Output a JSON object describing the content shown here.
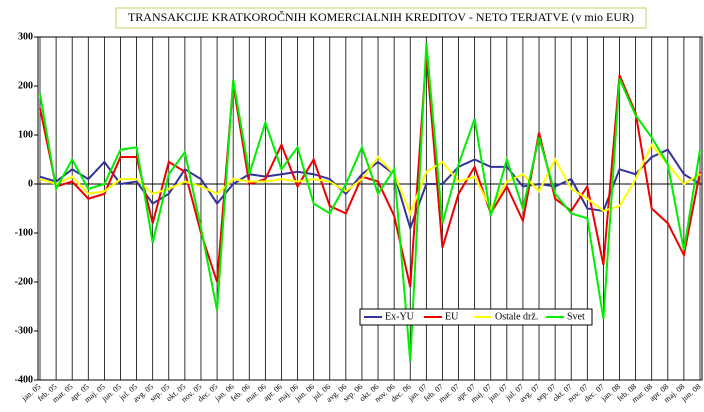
{
  "chart_data": {
    "type": "line",
    "title": "TRANSAKCIJE KRATKOROČNIH KOMERCIALNIH KREDITOV - NETO TERJATVE (v mio EUR)",
    "categories": [
      "jan. 05",
      "feb. 05",
      "mar. 05",
      "apr. 05",
      "maj. 05",
      "jun. 05",
      "jul. 05",
      "avg. 05",
      "sep. 05",
      "okt. 05",
      "nov. 05",
      "dec. 05",
      "jan. 06",
      "feb. 06",
      "mar. 06",
      "apr. 06",
      "maj. 06",
      "jun. 06",
      "jul. 06",
      "avg. 06",
      "sep. 06",
      "okt. 06",
      "nov. 06",
      "dec. 06",
      "jan. 07",
      "feb. 07",
      "mar. 07",
      "apr. 07",
      "maj. 07",
      "jun. 07",
      "jul. 07",
      "avg. 07",
      "sep. 07",
      "okt. 07",
      "nov. 07",
      "dec. 07",
      "jan. 08",
      "feb. 08",
      "mar. 08",
      "apr. 08",
      "maj. 08",
      "jun. 08"
    ],
    "series": [
      {
        "name": "Ex-YU",
        "color": "#333399",
        "values": [
          15,
          5,
          30,
          10,
          45,
          0,
          5,
          -40,
          -20,
          30,
          10,
          -40,
          0,
          20,
          15,
          20,
          25,
          20,
          10,
          -20,
          20,
          45,
          20,
          -90,
          0,
          0,
          35,
          50,
          35,
          35,
          -5,
          0,
          -5,
          10,
          -50,
          -55,
          30,
          20,
          55,
          70,
          20,
          0
        ]
      },
      {
        "name": "EU",
        "color": "#ee0000",
        "values": [
          155,
          -5,
          5,
          -30,
          -20,
          55,
          55,
          -80,
          45,
          25,
          -100,
          -200,
          205,
          0,
          10,
          80,
          -5,
          50,
          -45,
          -60,
          15,
          5,
          -65,
          -210,
          265,
          -130,
          -20,
          35,
          -60,
          -5,
          -75,
          105,
          -30,
          -55,
          -5,
          -165,
          222,
          145,
          -50,
          -80,
          -145,
          25
        ]
      },
      {
        "name": "Ostale drž.",
        "color": "#ffff00",
        "values": [
          10,
          0,
          15,
          -20,
          -15,
          10,
          10,
          -20,
          -10,
          5,
          -5,
          -20,
          10,
          5,
          5,
          10,
          5,
          10,
          5,
          -15,
          10,
          55,
          20,
          -60,
          25,
          45,
          5,
          15,
          -50,
          5,
          20,
          -15,
          50,
          -10,
          -30,
          -55,
          -45,
          10,
          80,
          40,
          0,
          20
        ]
      },
      {
        "name": "Svet",
        "color": "#00ee00",
        "values": [
          185,
          -10,
          50,
          -10,
          0,
          70,
          75,
          -120,
          20,
          65,
          -90,
          -258,
          213,
          20,
          125,
          30,
          75,
          -40,
          -60,
          0,
          75,
          -20,
          30,
          -362,
          288,
          -80,
          40,
          133,
          -65,
          50,
          -50,
          95,
          -20,
          -60,
          -70,
          -275,
          215,
          140,
          95,
          40,
          -135,
          70
        ]
      }
    ],
    "ylim": [
      -400,
      300
    ],
    "yticks": [
      -400,
      -300,
      -200,
      -100,
      0,
      100,
      200,
      300
    ],
    "grid": true,
    "legend": "lower right"
  }
}
